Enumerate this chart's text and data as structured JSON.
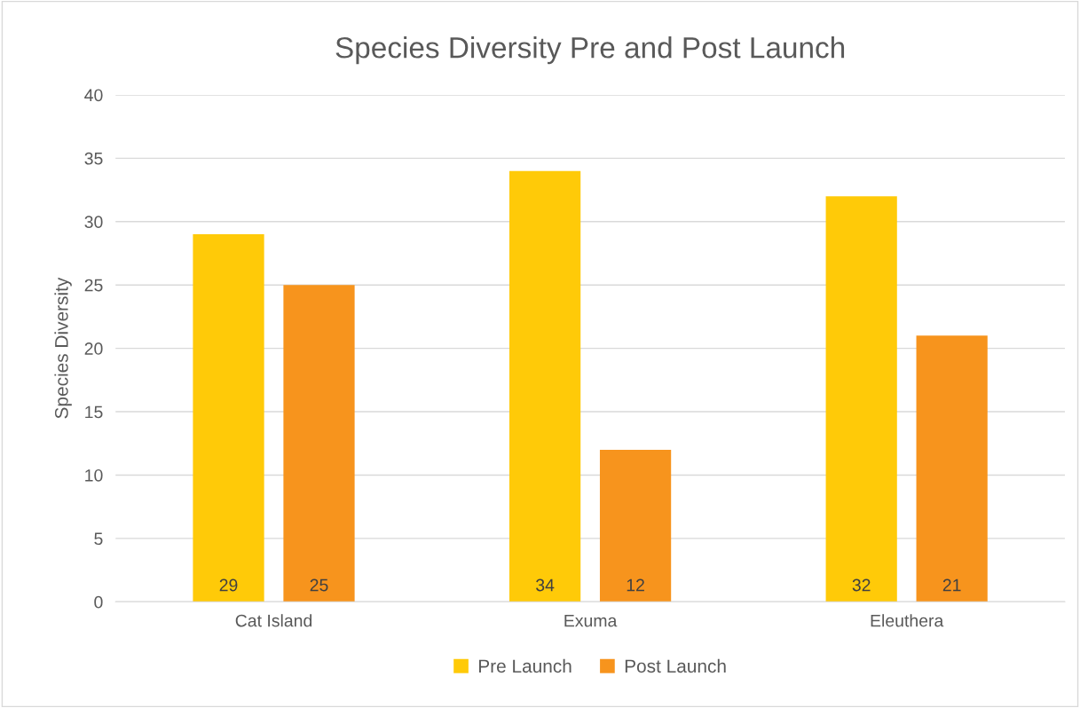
{
  "chart_data": {
    "type": "bar",
    "title": "Species Diversity Pre and Post Launch",
    "ylabel": "Species Diversity",
    "categories": [
      "Cat Island",
      "Exuma",
      "Eleuthera"
    ],
    "series": [
      {
        "name": "Pre Launch",
        "color": "#ffca08",
        "values": [
          29,
          34,
          32
        ]
      },
      {
        "name": "Post Launch",
        "color": "#f7941d",
        "values": [
          25,
          12,
          21
        ]
      }
    ],
    "ylim": [
      0,
      40
    ],
    "yticks": [
      0,
      5,
      10,
      15,
      20,
      25,
      30,
      35,
      40
    ],
    "grid": "y",
    "legend": "bottom",
    "data_labels": true
  }
}
